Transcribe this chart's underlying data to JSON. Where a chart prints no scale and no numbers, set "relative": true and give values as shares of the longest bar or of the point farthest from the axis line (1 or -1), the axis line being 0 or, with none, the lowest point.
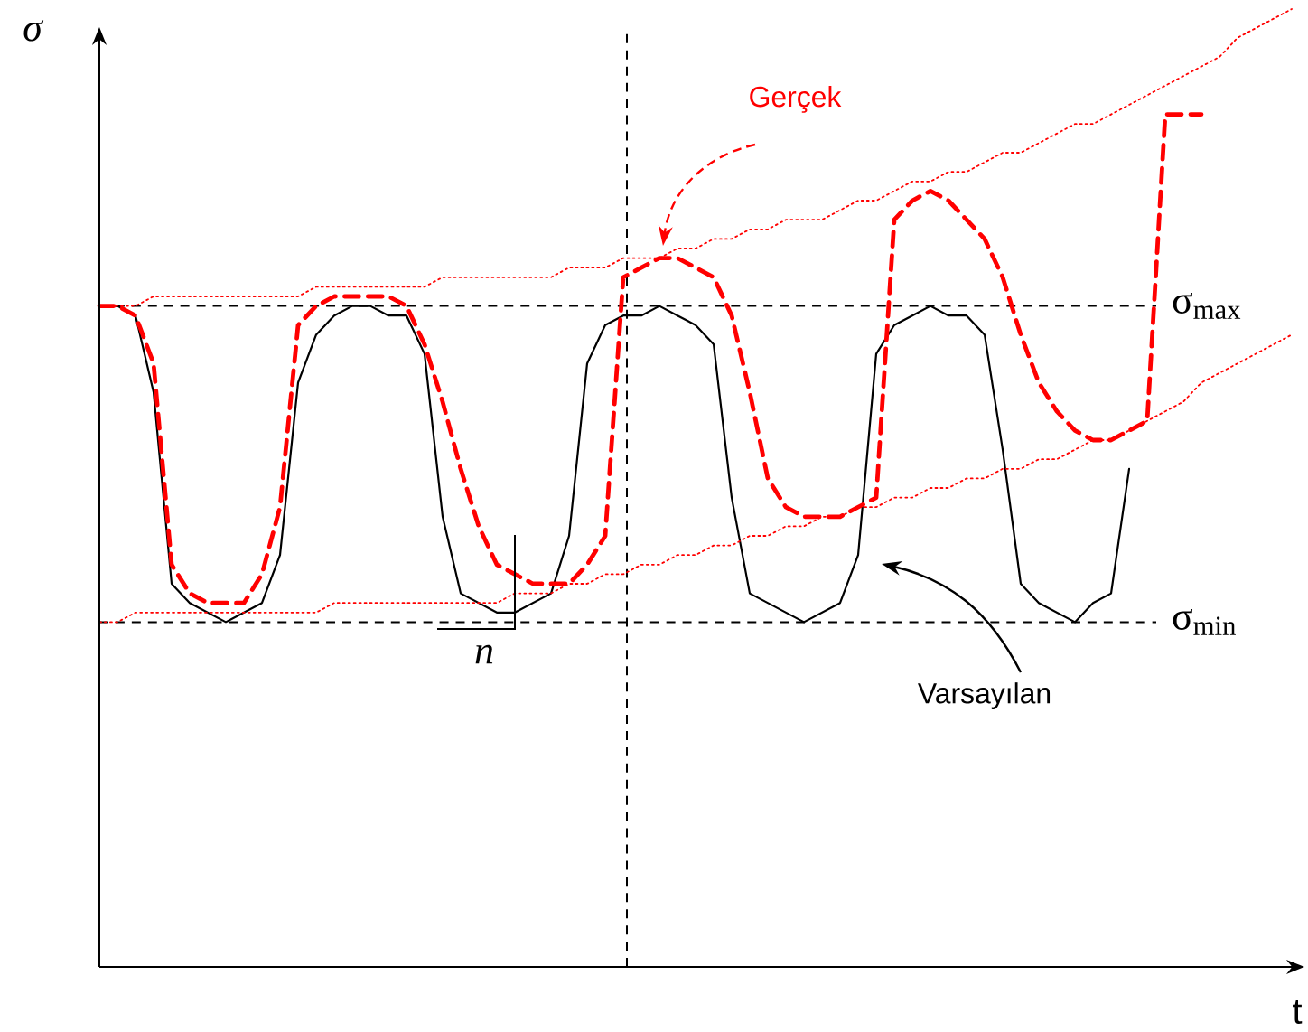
{
  "chart_data": {
    "type": "line",
    "relative": true,
    "xlabel": "t",
    "ylabel": "σ",
    "categories": [
      null,
      null,
      null,
      null,
      null,
      null,
      null,
      null,
      null,
      null,
      null,
      null,
      null,
      null,
      null,
      null,
      null,
      null,
      null,
      null,
      null,
      null,
      null,
      null,
      null,
      null,
      null,
      null,
      null,
      null,
      null,
      null,
      null,
      null,
      null,
      null,
      null,
      null,
      null,
      null,
      null,
      null,
      null,
      null,
      null,
      null,
      null,
      null,
      null,
      null,
      null,
      null,
      null,
      null,
      null,
      null,
      null,
      null,
      null,
      null,
      null,
      null,
      null,
      null,
      null,
      null,
      null
    ],
    "series": [
      {
        "name": "Varsayılan",
        "color": "#000000",
        "line_style": "solid",
        "values": [
          0.69,
          0.69,
          0.68,
          0.6,
          0.4,
          0.38,
          0.37,
          0.36,
          0.37,
          0.38,
          0.43,
          0.61,
          0.66,
          0.68,
          0.69,
          0.69,
          0.68,
          0.68,
          0.64,
          0.47,
          0.39,
          0.38,
          0.37,
          0.37,
          0.38,
          0.39,
          0.45,
          0.63,
          0.67,
          0.68,
          0.68,
          0.69,
          0.68,
          0.67,
          0.65,
          0.49,
          0.39,
          0.38,
          0.37,
          0.36,
          0.37,
          0.38,
          0.43,
          0.64,
          0.67,
          0.68,
          0.69,
          0.68,
          0.68,
          0.66,
          0.54,
          0.4,
          0.38,
          0.37,
          0.36,
          0.38,
          0.39,
          0.52,
          null,
          null,
          null,
          null,
          null,
          null,
          null,
          null,
          null
        ]
      },
      {
        "name": "Gerçek",
        "color": "#ff0000",
        "line_style": "dashed",
        "values": [
          0.69,
          0.69,
          0.68,
          0.63,
          0.42,
          0.39,
          0.38,
          0.38,
          0.38,
          0.41,
          0.48,
          0.67,
          0.69,
          0.7,
          0.7,
          0.7,
          0.7,
          0.69,
          0.65,
          0.59,
          0.52,
          0.46,
          0.42,
          0.41,
          0.4,
          0.4,
          0.4,
          0.42,
          0.45,
          0.72,
          0.73,
          0.74,
          0.74,
          0.73,
          0.72,
          0.68,
          0.6,
          0.51,
          0.48,
          0.47,
          0.47,
          0.47,
          0.48,
          0.49,
          0.78,
          0.8,
          0.81,
          0.8,
          0.78,
          0.76,
          0.72,
          0.66,
          0.61,
          0.58,
          0.56,
          0.55,
          0.55,
          0.56,
          0.57,
          0.89,
          0.89,
          0.89,
          null,
          null,
          null,
          null,
          null
        ]
      },
      {
        "color": "#ff0000",
        "line_style": "dotted",
        "values": [
          0.69,
          0.69,
          0.69,
          0.7,
          0.7,
          0.7,
          0.7,
          0.7,
          0.7,
          0.7,
          0.7,
          0.7,
          0.71,
          0.71,
          0.71,
          0.71,
          0.71,
          0.71,
          0.71,
          0.72,
          0.72,
          0.72,
          0.72,
          0.72,
          0.72,
          0.72,
          0.73,
          0.73,
          0.73,
          0.74,
          0.74,
          0.74,
          0.75,
          0.75,
          0.76,
          0.76,
          0.77,
          0.77,
          0.78,
          0.78,
          0.78,
          0.79,
          0.8,
          0.8,
          0.81,
          0.82,
          0.82,
          0.83,
          0.83,
          0.84,
          0.85,
          0.85,
          0.86,
          0.87,
          0.88,
          0.88,
          0.89,
          0.9,
          0.91,
          0.92,
          0.93,
          0.94,
          0.95,
          0.97,
          0.98,
          0.99,
          1
        ]
      },
      {
        "color": "#ff0000",
        "line_style": "dotted",
        "values": [
          0.36,
          0.36,
          0.37,
          0.37,
          0.37,
          0.37,
          0.37,
          0.37,
          0.37,
          0.37,
          0.37,
          0.37,
          0.37,
          0.38,
          0.38,
          0.38,
          0.38,
          0.38,
          0.38,
          0.38,
          0.38,
          0.38,
          0.38,
          0.39,
          0.39,
          0.39,
          0.4,
          0.4,
          0.41,
          0.41,
          0.42,
          0.42,
          0.43,
          0.43,
          0.44,
          0.44,
          0.45,
          0.45,
          0.46,
          0.46,
          0.47,
          0.47,
          0.48,
          0.48,
          0.49,
          0.49,
          0.5,
          0.5,
          0.51,
          0.51,
          0.52,
          0.52,
          0.53,
          0.53,
          0.54,
          0.55,
          0.55,
          0.56,
          0.57,
          0.58,
          0.59,
          0.61,
          0.62,
          0.63,
          0.64,
          0.65,
          0.66
        ]
      }
    ],
    "ref_lines": [
      {
        "axis": "y",
        "value": 0.69,
        "label": "σ$_{max}$",
        "line_style": "dashed",
        "color": "#000000"
      },
      {
        "axis": "y",
        "value": 0.36,
        "label": "σ$_{min}$",
        "line_style": "dashed",
        "color": "#000000"
      }
    ],
    "annotations": [
      "n"
    ]
  }
}
